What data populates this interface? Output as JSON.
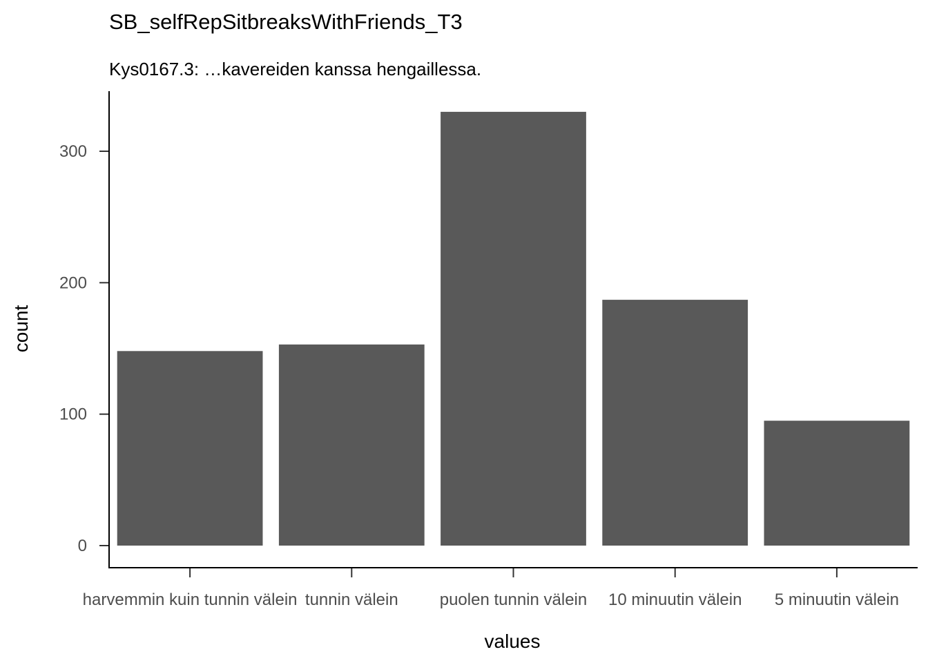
{
  "chart_data": {
    "type": "bar",
    "title": "SB_selfRepSitbreaksWithFriends_T3",
    "subtitle": "Kys0167.3: …kavereiden kanssa hengaillessa.",
    "xlabel": "values",
    "ylabel": "count",
    "categories": [
      "harvemmin kuin tunnin välein",
      "tunnin välein",
      "puolen tunnin välein",
      "10 minuutin välein",
      "5 minuutin välein"
    ],
    "values": [
      148,
      153,
      330,
      187,
      95
    ],
    "yticks": [
      0,
      100,
      200,
      300
    ],
    "ylim": [
      0,
      345
    ],
    "bar_color": "#595959",
    "grid": false,
    "legend": "none"
  }
}
